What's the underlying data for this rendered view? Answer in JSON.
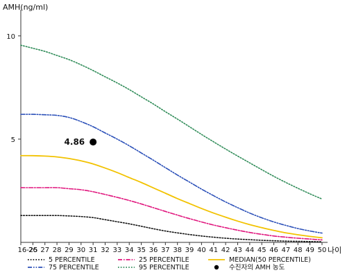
{
  "chart_data": {
    "type": "line",
    "ylabel": "AMH(ng/ml)",
    "xlabel": "나이",
    "categories": [
      "16-25",
      "26",
      "27",
      "28",
      "29",
      "30",
      "31",
      "32",
      "33",
      "34",
      "35",
      "36",
      "37",
      "38",
      "39",
      "40",
      "41",
      "42",
      "43",
      "44",
      "45",
      "46",
      "47",
      "48",
      "49",
      "50"
    ],
    "y_ticks": [
      5,
      10
    ],
    "ylim": [
      0,
      11
    ],
    "series": [
      {
        "name": "5 PERCENTILE",
        "color": "#111111",
        "dash": "dotted",
        "values": [
          1.3,
          1.3,
          1.3,
          1.3,
          1.28,
          1.25,
          1.2,
          1.1,
          1.0,
          0.9,
          0.78,
          0.66,
          0.55,
          0.46,
          0.38,
          0.31,
          0.25,
          0.2,
          0.16,
          0.13,
          0.1,
          0.08,
          0.06,
          0.05,
          0.04,
          0.03
        ]
      },
      {
        "name": "25 PERCENTILE",
        "color": "#e0157d",
        "dash": "dashdot",
        "values": [
          2.65,
          2.65,
          2.65,
          2.65,
          2.6,
          2.55,
          2.45,
          2.32,
          2.18,
          2.03,
          1.86,
          1.68,
          1.5,
          1.32,
          1.15,
          0.99,
          0.84,
          0.71,
          0.59,
          0.48,
          0.39,
          0.31,
          0.25,
          0.2,
          0.16,
          0.12
        ]
      },
      {
        "name": "MEDIAN(50 PERCENTILE)",
        "color": "#f2c200",
        "dash": "solid",
        "values": [
          4.2,
          4.2,
          4.18,
          4.14,
          4.06,
          3.95,
          3.8,
          3.6,
          3.38,
          3.14,
          2.9,
          2.64,
          2.38,
          2.12,
          1.88,
          1.64,
          1.42,
          1.22,
          1.03,
          0.86,
          0.71,
          0.58,
          0.46,
          0.37,
          0.29,
          0.22
        ]
      },
      {
        "name": "75 PERCENTILE",
        "color": "#2a4fb8",
        "dash": "dashdotdot",
        "values": [
          6.2,
          6.2,
          6.18,
          6.15,
          6.05,
          5.85,
          5.6,
          5.3,
          5.0,
          4.68,
          4.33,
          3.98,
          3.62,
          3.26,
          2.92,
          2.58,
          2.26,
          1.96,
          1.68,
          1.42,
          1.19,
          0.99,
          0.82,
          0.67,
          0.55,
          0.45
        ]
      },
      {
        "name": "95 PERCENTILE",
        "color": "#2e8b57",
        "dash": "dotted",
        "values": [
          9.55,
          9.4,
          9.25,
          9.05,
          8.85,
          8.6,
          8.32,
          8.02,
          7.72,
          7.4,
          7.05,
          6.7,
          6.33,
          5.97,
          5.6,
          5.23,
          4.87,
          4.52,
          4.18,
          3.85,
          3.52,
          3.2,
          2.9,
          2.62,
          2.35,
          2.1
        ]
      }
    ],
    "point": {
      "label": "4.86",
      "x": "31",
      "y": 4.86,
      "legend": "수진자의 AMH 농도",
      "color": "#000000"
    }
  }
}
